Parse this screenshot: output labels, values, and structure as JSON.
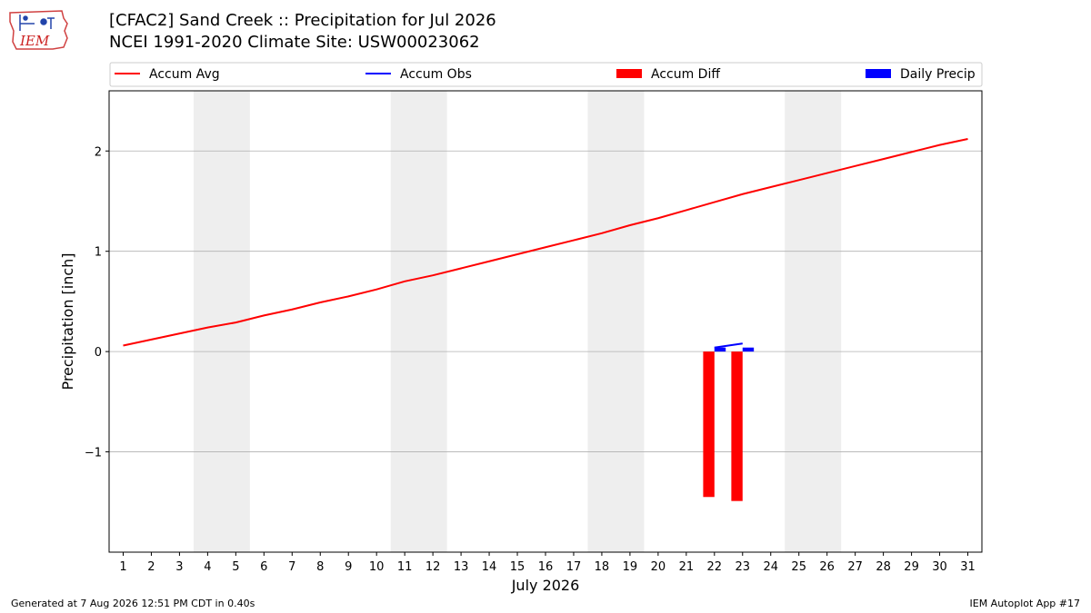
{
  "logo": {
    "text": "IEM"
  },
  "title_line1": "[CFAC2] Sand Creek :: Precipitation for Jul 2026",
  "title_line2": "NCEI 1991-2020 Climate Site: USW00023062",
  "footer_left": "Generated at 7 Aug 2026 12:51 PM CDT in 0.40s",
  "footer_right": "IEM Autoplot App #17",
  "chart_data": {
    "type": "bar",
    "xlabel": "July 2026",
    "ylabel": "Precipitation [inch]",
    "xlim": [
      0.5,
      31.5
    ],
    "ylim": [
      -2.0,
      2.6
    ],
    "x_ticks": [
      1,
      2,
      3,
      4,
      5,
      6,
      7,
      8,
      9,
      10,
      11,
      12,
      13,
      14,
      15,
      16,
      17,
      18,
      19,
      20,
      21,
      22,
      23,
      24,
      25,
      26,
      27,
      28,
      29,
      30,
      31
    ],
    "y_ticks": [
      -1,
      0,
      1,
      2
    ],
    "y_tick_labels": [
      "−1",
      "0",
      "1",
      "2"
    ],
    "grid": "horizontal",
    "weekend_bands": [
      [
        3.5,
        5.5
      ],
      [
        10.5,
        12.5
      ],
      [
        17.5,
        19.5
      ],
      [
        24.5,
        26.5
      ]
    ],
    "legend_position": "top",
    "legend": [
      {
        "label": "Accum Avg",
        "kind": "line",
        "color": "#ff0000"
      },
      {
        "label": "Accum Obs",
        "kind": "line",
        "color": "#0000ff"
      },
      {
        "label": "Accum Diff",
        "kind": "patch",
        "color": "#ff0000"
      },
      {
        "label": "Daily Precip",
        "kind": "patch",
        "color": "#0000ff"
      }
    ],
    "series": [
      {
        "name": "Accum Avg",
        "type": "line",
        "color": "#ff0000",
        "x": [
          1,
          2,
          3,
          4,
          5,
          6,
          7,
          8,
          9,
          10,
          11,
          12,
          13,
          14,
          15,
          16,
          17,
          18,
          19,
          20,
          21,
          22,
          23,
          24,
          25,
          26,
          27,
          28,
          29,
          30,
          31
        ],
        "values": [
          0.06,
          0.12,
          0.18,
          0.24,
          0.29,
          0.36,
          0.42,
          0.49,
          0.55,
          0.62,
          0.7,
          0.76,
          0.83,
          0.9,
          0.97,
          1.04,
          1.11,
          1.18,
          1.26,
          1.33,
          1.41,
          1.49,
          1.57,
          1.64,
          1.71,
          1.78,
          1.85,
          1.92,
          1.99,
          2.06,
          2.12
        ]
      },
      {
        "name": "Accum Obs",
        "type": "line",
        "color": "#0000ff",
        "x": [
          22,
          23
        ],
        "values": [
          0.04,
          0.08
        ]
      },
      {
        "name": "Accum Diff",
        "type": "bar",
        "color": "#ff0000",
        "x": [
          22,
          23
        ],
        "values": [
          -1.45,
          -1.49
        ]
      },
      {
        "name": "Daily Precip",
        "type": "bar",
        "color": "#0000ff",
        "x": [
          22,
          23
        ],
        "values": [
          0.04,
          0.04
        ]
      }
    ]
  }
}
